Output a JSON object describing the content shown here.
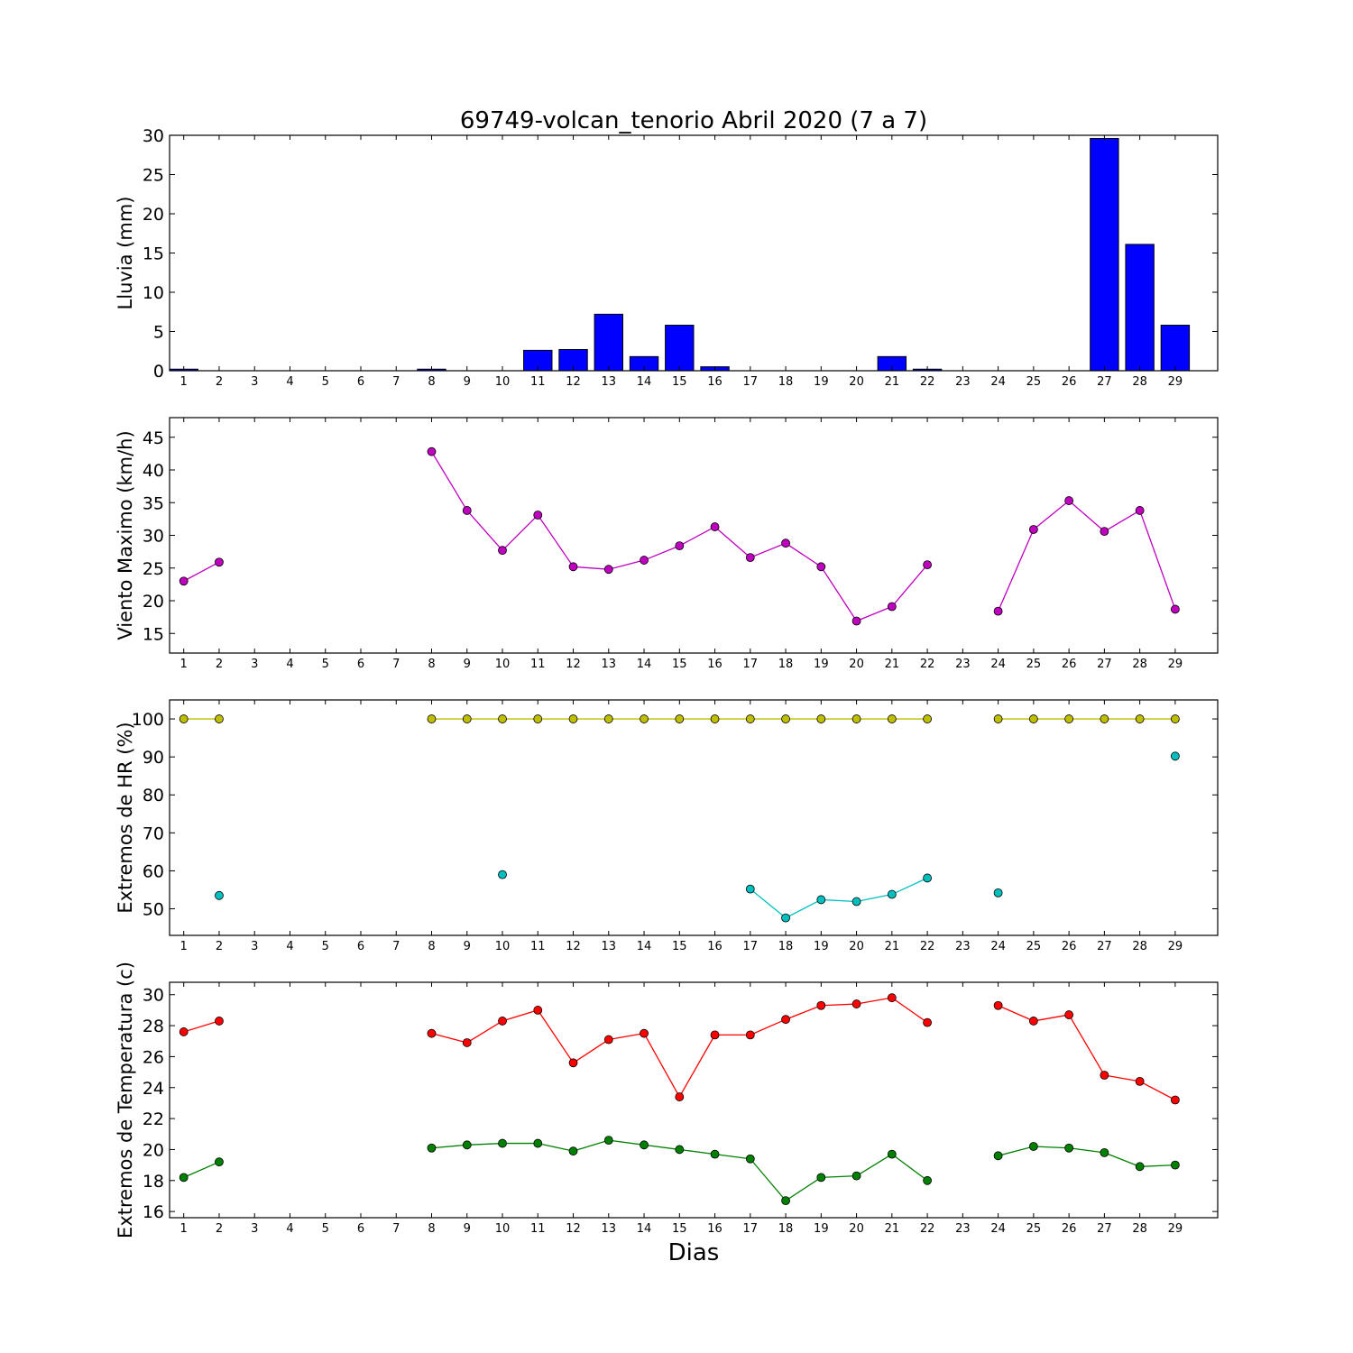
{
  "figure": {
    "title": "69749-volcan_tenorio Abril 2020  (7 a 7)",
    "xlabel": "Dias"
  },
  "colors": {
    "rain": "#0000ff",
    "wind": "#bf00bf",
    "hr_max": "#bfbf00",
    "hr_min": "#00bfbf",
    "temp_max": "#ff0000",
    "temp_min": "#008000"
  },
  "chart_data": [
    {
      "type": "bar",
      "ylabel": "Lluvia (mm)",
      "ylim": [
        0,
        30
      ],
      "yticks": [
        0,
        5,
        10,
        15,
        20,
        25,
        30
      ],
      "categories": [
        1,
        2,
        3,
        4,
        5,
        6,
        7,
        8,
        9,
        10,
        11,
        12,
        13,
        14,
        15,
        16,
        17,
        18,
        19,
        20,
        21,
        22,
        23,
        24,
        25,
        26,
        27,
        28,
        29
      ],
      "series": [
        {
          "color_key": "rain",
          "values": [
            0.2,
            0,
            0,
            0,
            0,
            0,
            0,
            0.2,
            0,
            0,
            2.6,
            2.7,
            7.2,
            1.8,
            5.8,
            0.5,
            0,
            0,
            0,
            0,
            1.8,
            0.2,
            0,
            0,
            0,
            0,
            29.6,
            16.1,
            5.8
          ]
        }
      ]
    },
    {
      "type": "line",
      "ylabel": "Viento Maximo (km/h)",
      "ylim": [
        12,
        48
      ],
      "yticks": [
        15,
        20,
        25,
        30,
        35,
        40,
        45
      ],
      "categories": [
        1,
        2,
        3,
        4,
        5,
        6,
        7,
        8,
        9,
        10,
        11,
        12,
        13,
        14,
        15,
        16,
        17,
        18,
        19,
        20,
        21,
        22,
        23,
        24,
        25,
        26,
        27,
        28,
        29
      ],
      "series": [
        {
          "color_key": "wind",
          "values": [
            23.0,
            25.9,
            null,
            null,
            null,
            null,
            null,
            42.8,
            33.8,
            27.7,
            33.1,
            25.2,
            24.8,
            26.2,
            28.4,
            31.3,
            26.6,
            28.8,
            25.2,
            16.9,
            19.1,
            25.5,
            null,
            18.4,
            30.9,
            35.3,
            30.6,
            33.8,
            18.7
          ]
        }
      ]
    },
    {
      "type": "line",
      "ylabel": "Extremos de HR (%)",
      "ylim": [
        43,
        105
      ],
      "yticks": [
        50,
        60,
        70,
        80,
        90,
        100
      ],
      "categories": [
        1,
        2,
        3,
        4,
        5,
        6,
        7,
        8,
        9,
        10,
        11,
        12,
        13,
        14,
        15,
        16,
        17,
        18,
        19,
        20,
        21,
        22,
        23,
        24,
        25,
        26,
        27,
        28,
        29
      ],
      "series": [
        {
          "color_key": "hr_max",
          "values": [
            100,
            100,
            null,
            null,
            null,
            null,
            null,
            100,
            100,
            100,
            100,
            100,
            100,
            100,
            100,
            100,
            100,
            100,
            100,
            100,
            100,
            100,
            null,
            100,
            100,
            100,
            100,
            100,
            100
          ]
        },
        {
          "color_key": "hr_min",
          "values": [
            null,
            53.5,
            null,
            null,
            null,
            null,
            null,
            null,
            null,
            59.0,
            null,
            null,
            null,
            null,
            null,
            null,
            55.2,
            47.6,
            52.4,
            51.9,
            53.8,
            58.1,
            null,
            54.2,
            null,
            null,
            null,
            null,
            90.2
          ]
        }
      ]
    },
    {
      "type": "line",
      "ylabel": "Extremos de Temperatura (c)",
      "ylim": [
        15.6,
        30.8
      ],
      "yticks": [
        16,
        18,
        20,
        22,
        24,
        26,
        28,
        30
      ],
      "categories": [
        1,
        2,
        3,
        4,
        5,
        6,
        7,
        8,
        9,
        10,
        11,
        12,
        13,
        14,
        15,
        16,
        17,
        18,
        19,
        20,
        21,
        22,
        23,
        24,
        25,
        26,
        27,
        28,
        29
      ],
      "series": [
        {
          "color_key": "temp_max",
          "values": [
            27.6,
            28.3,
            null,
            null,
            null,
            null,
            null,
            27.5,
            26.9,
            28.3,
            29.0,
            25.6,
            27.1,
            27.5,
            23.4,
            27.4,
            27.4,
            28.4,
            29.3,
            29.4,
            29.8,
            28.2,
            null,
            29.3,
            28.3,
            28.7,
            24.8,
            24.4,
            23.2
          ]
        },
        {
          "color_key": "temp_min",
          "values": [
            18.2,
            19.2,
            null,
            null,
            null,
            null,
            null,
            20.1,
            20.3,
            20.4,
            20.4,
            19.9,
            20.6,
            20.3,
            20.0,
            19.7,
            19.4,
            16.7,
            18.2,
            18.3,
            19.7,
            18.0,
            null,
            19.6,
            20.2,
            20.1,
            19.8,
            18.9,
            19.0
          ]
        }
      ]
    }
  ]
}
